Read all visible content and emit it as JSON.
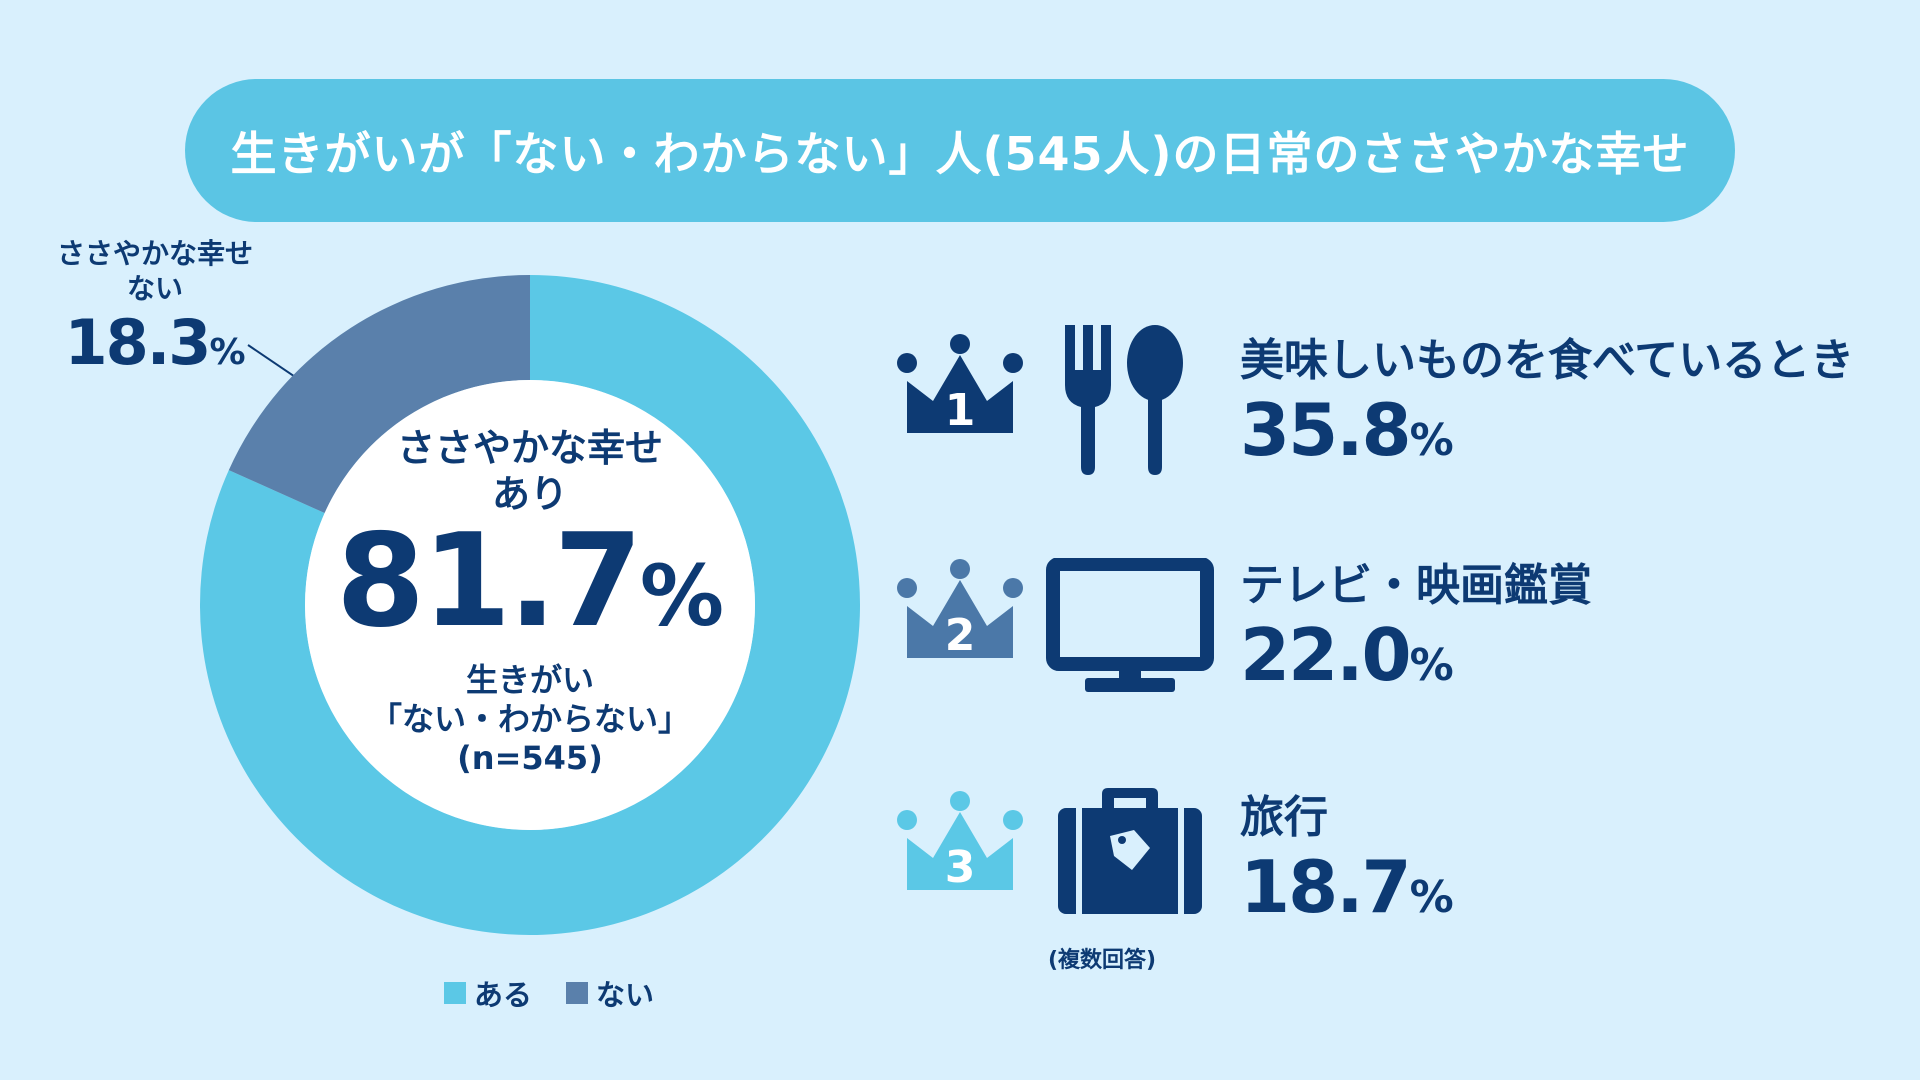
{
  "title": "生きがいが「ない・わからない」人(545人)の日常のささやかな幸せ",
  "colors": {
    "background": "#d9f0fd",
    "banner": "#5bc5e4",
    "aru": "#5bc8e6",
    "nai": "#5a80ab",
    "navy": "#0d3a73",
    "rank2": "#4b78a8",
    "rank3": "#5bc8e6"
  },
  "chart_data": [
    {
      "type": "pie",
      "subtype": "donut",
      "categories": [
        "ある",
        "ない"
      ],
      "values": [
        81.7,
        18.3
      ],
      "unit": "%",
      "legend": {
        "placement": "bottom"
      },
      "center": {
        "label_line1": "ささやかな幸せ",
        "label_line2": "あり",
        "value": "81.7",
        "unit": "%",
        "sub_line1": "生きがい",
        "sub_line2": "「ない・わからない」",
        "sub_line3": "(n=545)"
      },
      "outer": {
        "label_line1": "ささやかな幸せ",
        "label_line2": "ない",
        "value": "18.3",
        "unit": "%"
      }
    },
    {
      "type": "table",
      "note": "(複数回答)",
      "rows": [
        {
          "rank": "1",
          "label": "美味しいものを食べているとき",
          "value": "35.8",
          "unit": "%",
          "icon": "fork-spoon-icon"
        },
        {
          "rank": "2",
          "label": "テレビ・映画鑑賞",
          "value": "22.0",
          "unit": "%",
          "icon": "tv-icon"
        },
        {
          "rank": "3",
          "label": "旅行",
          "value": "18.7",
          "unit": "%",
          "icon": "suitcase-icon"
        }
      ]
    }
  ]
}
